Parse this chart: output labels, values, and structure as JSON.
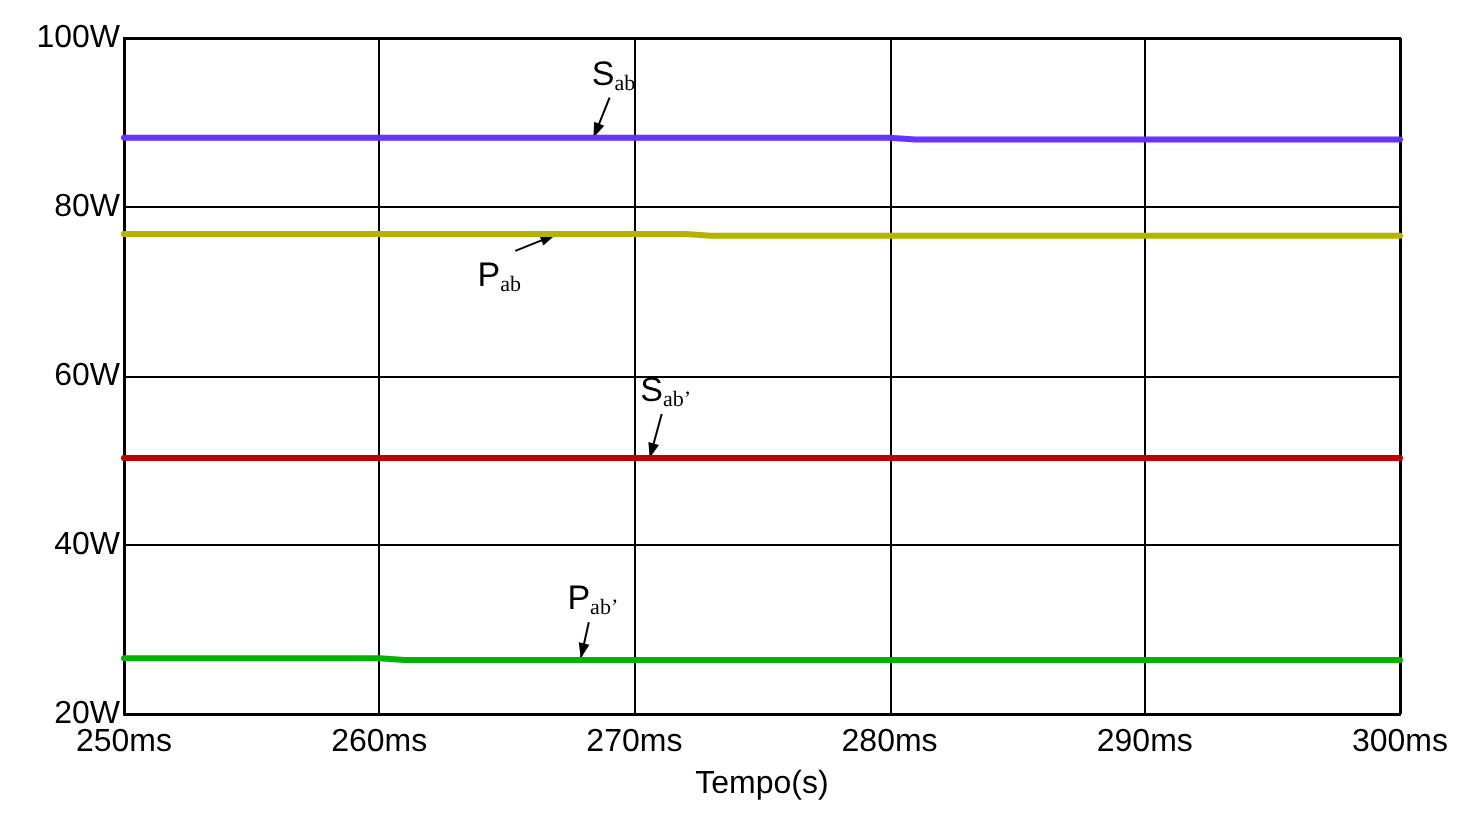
{
  "chart_data": {
    "type": "line",
    "xlabel": "Tempo(s)",
    "series": [
      {
        "color": "#6633ff",
        "x": [
          250,
          280,
          281,
          300
        ],
        "values": [
          88.2,
          88.2,
          88.0,
          88.0
        ]
      },
      {
        "color": "#b3b300",
        "x": [
          250,
          272,
          273,
          300
        ],
        "values": [
          76.8,
          76.8,
          76.6,
          76.6
        ]
      },
      {
        "color": "#c00000",
        "x": [
          250,
          300
        ],
        "values": [
          50.3,
          50.3
        ]
      },
      {
        "color": "#00b300",
        "x": [
          250,
          260,
          261,
          300
        ],
        "values": [
          26.6,
          26.6,
          26.4,
          26.4
        ]
      }
    ],
    "annotations": [
      {
        "text": "S$_{ab}$",
        "x": 268.4,
        "y": 88.2
      },
      {
        "text": "P$_{ab}$",
        "x": 266.9,
        "y": 76.7
      },
      {
        "text": "S$_{ab’}$",
        "x": 270.6,
        "y": 50.3
      },
      {
        "text": "P$_{ab’}$",
        "x": 267.9,
        "y": 26.6
      }
    ],
    "xlim": [
      250,
      300
    ],
    "xticks": [
      {
        "value": 250,
        "label": "250ms"
      },
      {
        "value": 260,
        "label": "260ms"
      },
      {
        "value": 270,
        "label": "270ms"
      },
      {
        "value": 280,
        "label": "280ms"
      },
      {
        "value": 290,
        "label": "290ms"
      },
      {
        "value": 300,
        "label": "300ms"
      }
    ],
    "ylim": [
      20,
      100
    ],
    "yticks": [
      {
        "value": 20,
        "label": "20W"
      },
      {
        "value": 40,
        "label": "40W"
      },
      {
        "value": 60,
        "label": "60W"
      },
      {
        "value": 80,
        "label": "80W"
      },
      {
        "value": 100,
        "label": "100W"
      }
    ],
    "grid": true,
    "marker": "none",
    "line_style": "solid"
  }
}
